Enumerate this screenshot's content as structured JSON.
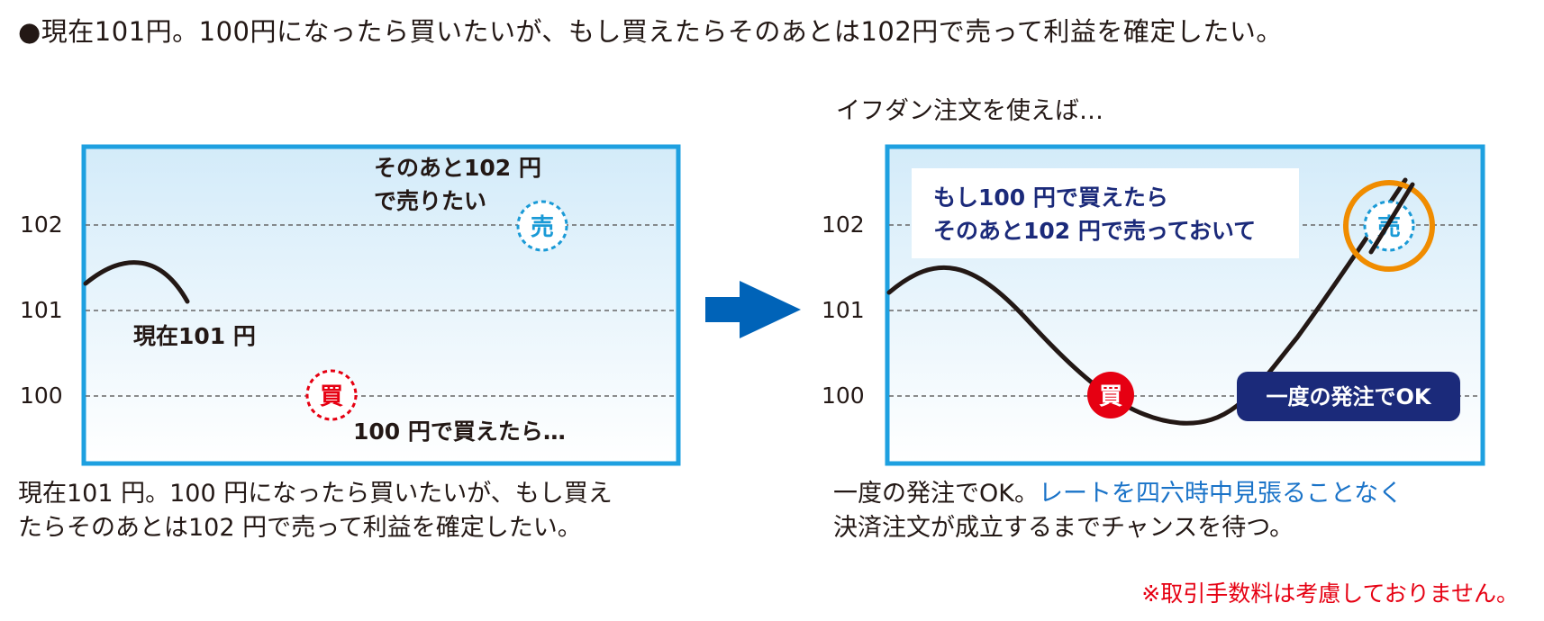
{
  "headline": "●現在101円。100円になったら買いたいが、もし買えたらそのあとは102円で売って利益を確定したい。",
  "left_panel": {
    "y_ticks": [
      "102",
      "101",
      "100"
    ],
    "now_label": "現在101 円",
    "sell_wish_line1": "そのあと102 円",
    "sell_wish_line2": "で売りたい",
    "buy_condition": "100 円で買えたら…",
    "buy_mark": "買",
    "sell_mark": "売",
    "caption_line1": "現在101 円。100 円になったら買いたいが、もし買え",
    "caption_line2": "たらそのあとは102 円で売って利益を確定したい。"
  },
  "right_panel": {
    "subhead": "イフダン注文を使えば…",
    "y_ticks": [
      "102",
      "101",
      "100"
    ],
    "speech_line1": "もし100 円で買えたら",
    "speech_line2": "そのあと102 円で売っておいて",
    "buy_mark": "買",
    "sell_mark": "売",
    "badge": "一度の発注でOK",
    "caption_line1_black": "一度の発注でOK。",
    "caption_line1_blue": "レートを四六時中見張ることなく",
    "caption_line2": "決済注文が成立するまでチャンスを待つ。"
  },
  "note": "※取引手数料は考慮しておりません。",
  "colors": {
    "frame": "#1ea0e0",
    "arrow": "#0063b8",
    "buy_red": "#e60012",
    "sell_blue": "#1a9ad6",
    "badge_navy": "#1b2a7a",
    "speech_navy": "#1b2a7a",
    "highlight_orange": "#f08c00",
    "note_red": "#e60012"
  }
}
